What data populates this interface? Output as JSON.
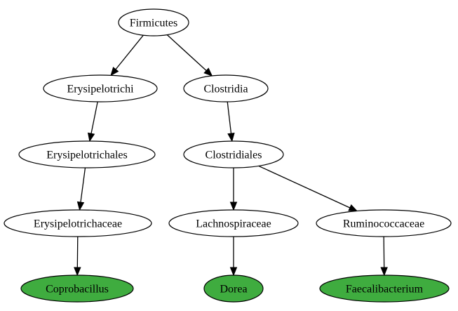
{
  "diagram": {
    "nodes": [
      {
        "id": "firmicutes",
        "label": "Firmicutes",
        "highlight": false
      },
      {
        "id": "erysipelotrichi",
        "label": "Erysipelotrichi",
        "highlight": false
      },
      {
        "id": "clostridia",
        "label": "Clostridia",
        "highlight": false
      },
      {
        "id": "erysipelotrichales",
        "label": "Erysipelotrichales",
        "highlight": false
      },
      {
        "id": "clostridiales",
        "label": "Clostridiales",
        "highlight": false
      },
      {
        "id": "erysipelotrichaceae",
        "label": "Erysipelotrichaceae",
        "highlight": false
      },
      {
        "id": "lachnospiraceae",
        "label": "Lachnospiraceae",
        "highlight": false
      },
      {
        "id": "ruminococcaceae",
        "label": "Ruminococcaceae",
        "highlight": false
      },
      {
        "id": "coprobacillus",
        "label": "Coprobacillus",
        "highlight": true
      },
      {
        "id": "dorea",
        "label": "Dorea",
        "highlight": true
      },
      {
        "id": "faecalibacterium",
        "label": "Faecalibacterium",
        "highlight": true
      }
    ],
    "edges": [
      {
        "from": "firmicutes",
        "to": "erysipelotrichi"
      },
      {
        "from": "firmicutes",
        "to": "clostridia"
      },
      {
        "from": "erysipelotrichi",
        "to": "erysipelotrichales"
      },
      {
        "from": "clostridia",
        "to": "clostridiales"
      },
      {
        "from": "erysipelotrichales",
        "to": "erysipelotrichaceae"
      },
      {
        "from": "clostridiales",
        "to": "lachnospiraceae"
      },
      {
        "from": "clostridiales",
        "to": "ruminococcaceae"
      },
      {
        "from": "erysipelotrichaceae",
        "to": "coprobacillus"
      },
      {
        "from": "lachnospiraceae",
        "to": "dorea"
      },
      {
        "from": "ruminococcaceae",
        "to": "faecalibacterium"
      }
    ],
    "colors": {
      "node_fill": "#ffffff",
      "highlight_fill": "#3fac3f",
      "stroke": "#000000"
    }
  }
}
